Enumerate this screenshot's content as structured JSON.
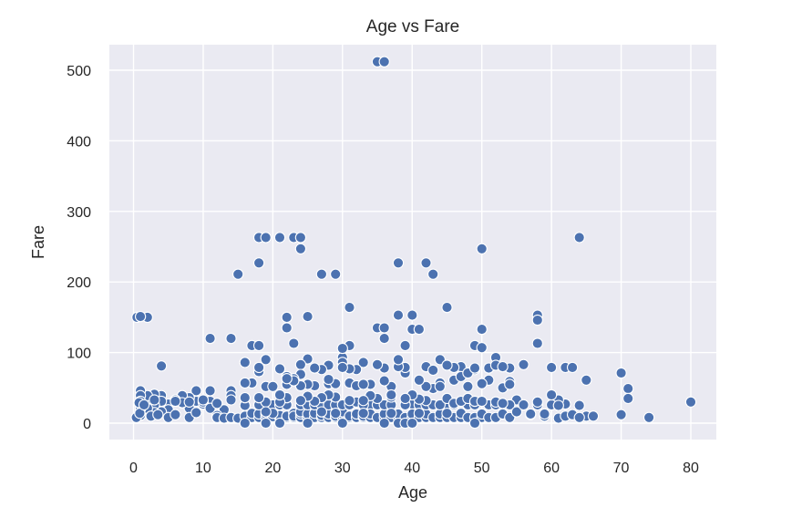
{
  "chart_data": {
    "type": "scatter",
    "title": "Age vs Fare",
    "xlabel": "Age",
    "ylabel": "Fare",
    "xlim": [
      -3.5,
      84
    ],
    "ylim": [
      -25,
      538
    ],
    "xticks": [
      0,
      10,
      20,
      30,
      40,
      50,
      60,
      70,
      80
    ],
    "yticks": [
      0,
      100,
      200,
      300,
      400,
      500
    ],
    "grid": true,
    "background": "#eaeaf2",
    "point_color": "#4c72b0",
    "points": [
      [
        35,
        512
      ],
      [
        36,
        512
      ],
      [
        0.5,
        150
      ],
      [
        2,
        150
      ],
      [
        1,
        151
      ],
      [
        15,
        211
      ],
      [
        18,
        227
      ],
      [
        18,
        263
      ],
      [
        19,
        263
      ],
      [
        21,
        263
      ],
      [
        23,
        263
      ],
      [
        24,
        263
      ],
      [
        24,
        247
      ],
      [
        27,
        211
      ],
      [
        29,
        211
      ],
      [
        38,
        227
      ],
      [
        42,
        227
      ],
      [
        43,
        211
      ],
      [
        50,
        247
      ],
      [
        64,
        263
      ],
      [
        4,
        81
      ],
      [
        11,
        120
      ],
      [
        14,
        120
      ],
      [
        17,
        110
      ],
      [
        18,
        110
      ],
      [
        19,
        90
      ],
      [
        22,
        135
      ],
      [
        22,
        150
      ],
      [
        23,
        113
      ],
      [
        25,
        91
      ],
      [
        25,
        151
      ],
      [
        31,
        164
      ],
      [
        31,
        110
      ],
      [
        35,
        135
      ],
      [
        36,
        135
      ],
      [
        36,
        120
      ],
      [
        38,
        153
      ],
      [
        40,
        153
      ],
      [
        40,
        133
      ],
      [
        41,
        133
      ],
      [
        39,
        110
      ],
      [
        45,
        164
      ],
      [
        49,
        110
      ],
      [
        50,
        133
      ],
      [
        50,
        107
      ],
      [
        58,
        153
      ],
      [
        58,
        146
      ],
      [
        58,
        113
      ],
      [
        44,
        90
      ],
      [
        47,
        80
      ],
      [
        52,
        93
      ],
      [
        56,
        83
      ],
      [
        60,
        79
      ],
      [
        62,
        79
      ],
      [
        63,
        79
      ],
      [
        70,
        71
      ],
      [
        71,
        49
      ],
      [
        71,
        35
      ],
      [
        70,
        12
      ],
      [
        74,
        8
      ],
      [
        80,
        30
      ],
      [
        65,
        61
      ],
      [
        65,
        10
      ],
      [
        66,
        10
      ],
      [
        64,
        25
      ],
      [
        62,
        27
      ],
      [
        61,
        33
      ],
      [
        59,
        10
      ],
      [
        58,
        27
      ],
      [
        57,
        12
      ],
      [
        55,
        33
      ],
      [
        54,
        59
      ],
      [
        54,
        78
      ],
      [
        53,
        50
      ],
      [
        51,
        78
      ],
      [
        51,
        61
      ],
      [
        49,
        76
      ],
      [
        48,
        52
      ],
      [
        48,
        30
      ],
      [
        46,
        79
      ],
      [
        45,
        82
      ],
      [
        44,
        57
      ],
      [
        43,
        49
      ],
      [
        42,
        52
      ],
      [
        40,
        27
      ],
      [
        39,
        71
      ],
      [
        39,
        79
      ],
      [
        38,
        80
      ],
      [
        38,
        90
      ],
      [
        37,
        52
      ],
      [
        36,
        78
      ],
      [
        35,
        83
      ],
      [
        34,
        26
      ],
      [
        33,
        86
      ],
      [
        32,
        76
      ],
      [
        31,
        57
      ],
      [
        30,
        93
      ],
      [
        30,
        86
      ],
      [
        30,
        106
      ],
      [
        28,
        56
      ],
      [
        28,
        82
      ],
      [
        27,
        76
      ],
      [
        26,
        78
      ],
      [
        26,
        53
      ],
      [
        25,
        55
      ],
      [
        24,
        83
      ],
      [
        24,
        69
      ],
      [
        23,
        63
      ],
      [
        22,
        66
      ],
      [
        22,
        55
      ],
      [
        21,
        77
      ],
      [
        20,
        26
      ],
      [
        19,
        52
      ],
      [
        18,
        73
      ],
      [
        18,
        79
      ],
      [
        17,
        57
      ],
      [
        16,
        57
      ],
      [
        16,
        86
      ],
      [
        14,
        46
      ],
      [
        14,
        39
      ],
      [
        13,
        19
      ],
      [
        12,
        11
      ],
      [
        11,
        46
      ],
      [
        11,
        31
      ],
      [
        10,
        27
      ],
      [
        9,
        31
      ],
      [
        9,
        46
      ],
      [
        8,
        36
      ],
      [
        8,
        21
      ],
      [
        7,
        39
      ],
      [
        6,
        33
      ],
      [
        5,
        27
      ],
      [
        5,
        19
      ],
      [
        4,
        39
      ],
      [
        4,
        31
      ],
      [
        4,
        16
      ],
      [
        3,
        41
      ],
      [
        3,
        26
      ],
      [
        3,
        15
      ],
      [
        2,
        31
      ],
      [
        2,
        39
      ],
      [
        2,
        21
      ],
      [
        1,
        46
      ],
      [
        1,
        39
      ],
      [
        1,
        31
      ],
      [
        1,
        20
      ],
      [
        1,
        11
      ],
      [
        0.8,
        29
      ],
      [
        0.4,
        8
      ],
      [
        0.9,
        14
      ],
      [
        1.5,
        26
      ],
      [
        2.5,
        10
      ],
      [
        3.5,
        12
      ],
      [
        5,
        8
      ],
      [
        6,
        12
      ],
      [
        7,
        29
      ],
      [
        8,
        8
      ],
      [
        9,
        15
      ],
      [
        10,
        30
      ],
      [
        11,
        21
      ],
      [
        12,
        8
      ],
      [
        13,
        7
      ],
      [
        14,
        8
      ],
      [
        15,
        7
      ],
      [
        16,
        10
      ],
      [
        16,
        25
      ],
      [
        17,
        8
      ],
      [
        17,
        14
      ],
      [
        18,
        8
      ],
      [
        18,
        13
      ],
      [
        18,
        26
      ],
      [
        19,
        8
      ],
      [
        19,
        13
      ],
      [
        20,
        8
      ],
      [
        20,
        10
      ],
      [
        20,
        9
      ],
      [
        21,
        8
      ],
      [
        21,
        11
      ],
      [
        21,
        26
      ],
      [
        22,
        7
      ],
      [
        22,
        8
      ],
      [
        22,
        10
      ],
      [
        22,
        26
      ],
      [
        23,
        8
      ],
      [
        23,
        14
      ],
      [
        23,
        10
      ],
      [
        24,
        8
      ],
      [
        24,
        13
      ],
      [
        24,
        16
      ],
      [
        24,
        26
      ],
      [
        25,
        7
      ],
      [
        25,
        8
      ],
      [
        25,
        13
      ],
      [
        25,
        26
      ],
      [
        26,
        8
      ],
      [
        26,
        14
      ],
      [
        26,
        26
      ],
      [
        27,
        8
      ],
      [
        27,
        11
      ],
      [
        27,
        26
      ],
      [
        28,
        8
      ],
      [
        28,
        13
      ],
      [
        28,
        26
      ],
      [
        29,
        8
      ],
      [
        29,
        10
      ],
      [
        29,
        26
      ],
      [
        30,
        8
      ],
      [
        30,
        13
      ],
      [
        30,
        16
      ],
      [
        30,
        26
      ],
      [
        31,
        8
      ],
      [
        31,
        10
      ],
      [
        31,
        26
      ],
      [
        32,
        8
      ],
      [
        32,
        13
      ],
      [
        32,
        30
      ],
      [
        33,
        8
      ],
      [
        33,
        10
      ],
      [
        33,
        26
      ],
      [
        34,
        8
      ],
      [
        34,
        13
      ],
      [
        35,
        8
      ],
      [
        35,
        26
      ],
      [
        36,
        8
      ],
      [
        36,
        13
      ],
      [
        36,
        26
      ],
      [
        37,
        8
      ],
      [
        37,
        26
      ],
      [
        38,
        8
      ],
      [
        38,
        13
      ],
      [
        39,
        8
      ],
      [
        39,
        26
      ],
      [
        40,
        8
      ],
      [
        40,
        13
      ],
      [
        41,
        8
      ],
      [
        41,
        26
      ],
      [
        42,
        8
      ],
      [
        42,
        13
      ],
      [
        42,
        26
      ],
      [
        43,
        8
      ],
      [
        43,
        26
      ],
      [
        44,
        8
      ],
      [
        44,
        13
      ],
      [
        45,
        8
      ],
      [
        45,
        26
      ],
      [
        46,
        8
      ],
      [
        46,
        26
      ],
      [
        47,
        8
      ],
      [
        47,
        14
      ],
      [
        48,
        8
      ],
      [
        48,
        26
      ],
      [
        49,
        8
      ],
      [
        49,
        26
      ],
      [
        50,
        8
      ],
      [
        50,
        13
      ],
      [
        51,
        8
      ],
      [
        51,
        26
      ],
      [
        52,
        8
      ],
      [
        52,
        26
      ],
      [
        53,
        13
      ],
      [
        54,
        8
      ],
      [
        54,
        26
      ],
      [
        55,
        16
      ],
      [
        56,
        26
      ],
      [
        57,
        13
      ],
      [
        58,
        26
      ],
      [
        59,
        13
      ],
      [
        60,
        26
      ],
      [
        61,
        7
      ],
      [
        62,
        10
      ],
      [
        63,
        12
      ],
      [
        64,
        8
      ],
      [
        44,
        26
      ],
      [
        45,
        35
      ],
      [
        46,
        28
      ],
      [
        47,
        31
      ],
      [
        48,
        35
      ],
      [
        49,
        31
      ],
      [
        50,
        31
      ],
      [
        52,
        30
      ],
      [
        53,
        28
      ],
      [
        42,
        32
      ],
      [
        41,
        34
      ],
      [
        40,
        40
      ],
      [
        39,
        35
      ],
      [
        37,
        37
      ],
      [
        35,
        35
      ],
      [
        34,
        39
      ],
      [
        33,
        32
      ],
      [
        31,
        32
      ],
      [
        29,
        37
      ],
      [
        28,
        40
      ],
      [
        27,
        36
      ],
      [
        26,
        31
      ],
      [
        25,
        38
      ],
      [
        24,
        32
      ],
      [
        22,
        36
      ],
      [
        21,
        30
      ],
      [
        19,
        30
      ],
      [
        18,
        36
      ],
      [
        16,
        36
      ],
      [
        14,
        33
      ],
      [
        12,
        28
      ],
      [
        10,
        33
      ],
      [
        8,
        30
      ],
      [
        6,
        31
      ],
      [
        3,
        33
      ],
      [
        29,
        56
      ],
      [
        28,
        62
      ],
      [
        24,
        53
      ],
      [
        23,
        60
      ],
      [
        22,
        63
      ],
      [
        21,
        40
      ],
      [
        20,
        52
      ],
      [
        36,
        60
      ],
      [
        34,
        55
      ],
      [
        32,
        53
      ],
      [
        33,
        55
      ],
      [
        31,
        77
      ],
      [
        30,
        79
      ],
      [
        37,
        40
      ],
      [
        41,
        61
      ],
      [
        42,
        80
      ],
      [
        43,
        75
      ],
      [
        44,
        52
      ],
      [
        46,
        61
      ],
      [
        47,
        66
      ],
      [
        48,
        71
      ],
      [
        49,
        78
      ],
      [
        50,
        56
      ],
      [
        52,
        82
      ],
      [
        53,
        80
      ],
      [
        54,
        55
      ],
      [
        58,
        30
      ],
      [
        60,
        40
      ],
      [
        61,
        25
      ],
      [
        29,
        14
      ],
      [
        27,
        16
      ],
      [
        20,
        14
      ],
      [
        19,
        16
      ],
      [
        33,
        14
      ],
      [
        37,
        14
      ],
      [
        41,
        14
      ],
      [
        45,
        14
      ],
      [
        49,
        0
      ],
      [
        16,
        0
      ],
      [
        21,
        0
      ],
      [
        25,
        0
      ],
      [
        19,
        0
      ],
      [
        36,
        0
      ],
      [
        38,
        0
      ],
      [
        39,
        0
      ],
      [
        40,
        0
      ],
      [
        30,
        0
      ]
    ]
  }
}
